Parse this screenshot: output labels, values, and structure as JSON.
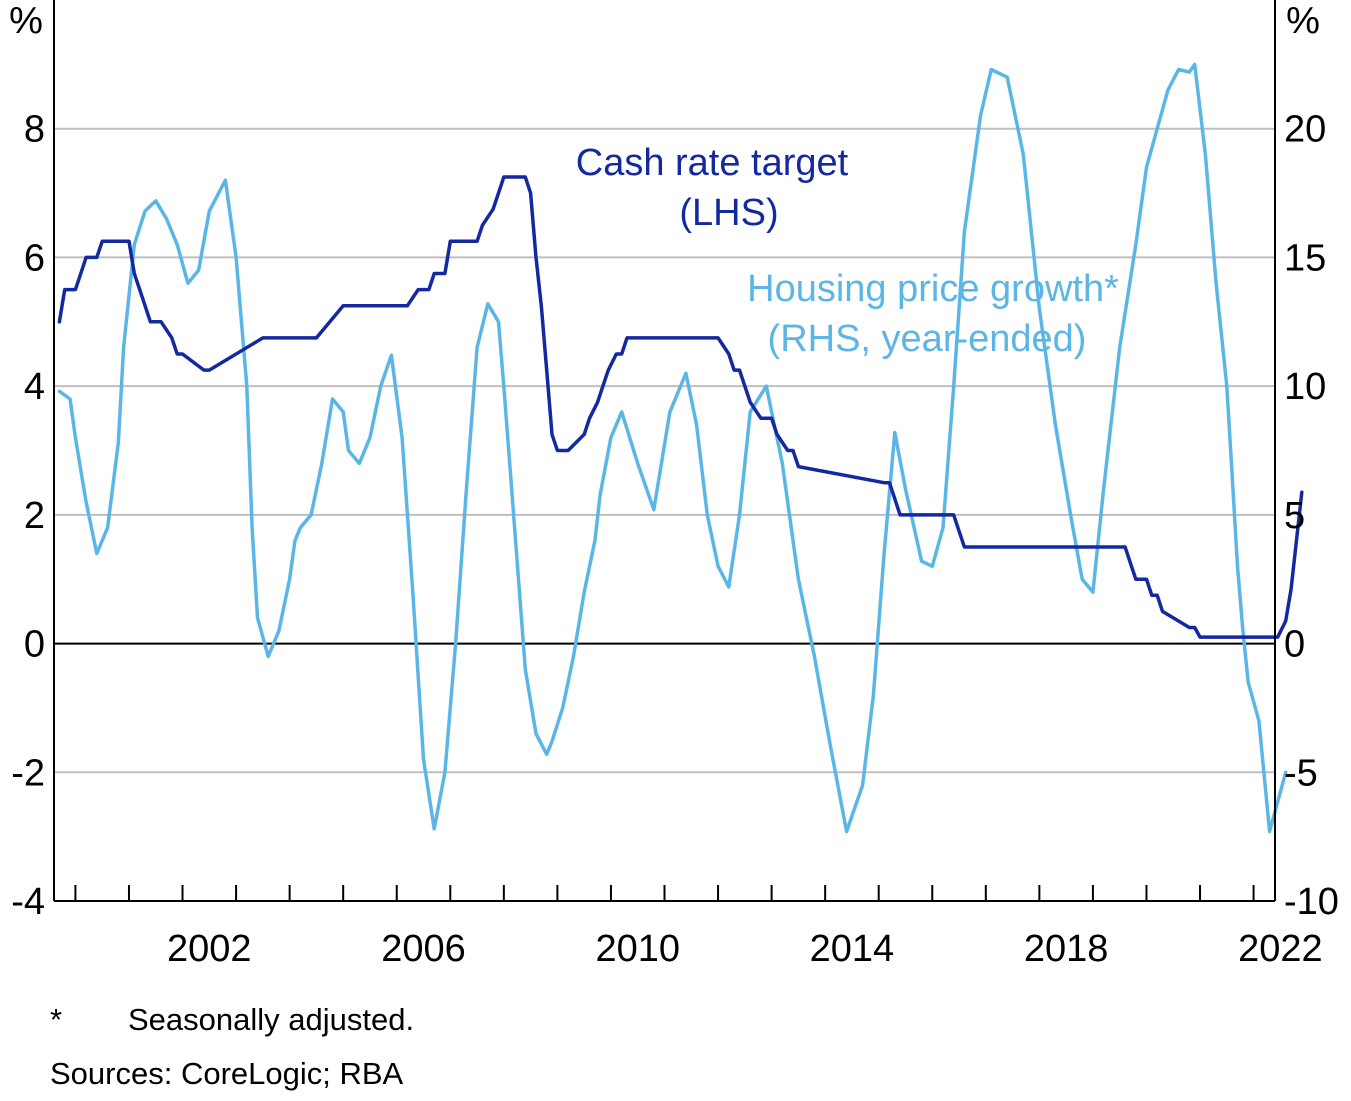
{
  "colors": {
    "cash": "#1428A0",
    "housing": "#5BB6E6",
    "grid": "#BFBFBF",
    "axis": "#000000"
  },
  "chart_data": {
    "type": "line",
    "title": "",
    "x_range": [
      1999.6,
      2022.4
    ],
    "x_ticks": [
      2002,
      2006,
      2010,
      2014,
      2018,
      2022
    ],
    "x_tick_labels": [
      "2002",
      "2006",
      "2010",
      "2014",
      "2018",
      "2022"
    ],
    "left_axis": {
      "unit_label": "%",
      "range": [
        -4,
        10
      ],
      "ticks": [
        8,
        6,
        4,
        2,
        0,
        -2,
        -4
      ],
      "tick_labels": [
        "8",
        "6",
        "4",
        "2",
        "0",
        "-2",
        "-4"
      ]
    },
    "right_axis": {
      "unit_label": "%",
      "range": [
        -10,
        25
      ],
      "ticks": [
        20,
        15,
        10,
        5,
        0,
        -5,
        -10
      ],
      "tick_labels": [
        "20",
        "15",
        "10",
        "5",
        "0",
        "-5",
        "-10"
      ]
    },
    "series": [
      {
        "name": "Cash rate target",
        "axis": "left",
        "label_line1": "Cash rate target",
        "label_line2": "(LHS)",
        "step": true,
        "x": [
          1999.7,
          1999.8,
          2000.0,
          2000.1,
          2000.2,
          2000.4,
          2000.5,
          2000.6,
          2000.8,
          2001.0,
          2001.1,
          2001.2,
          2001.4,
          2001.5,
          2001.6,
          2001.8,
          2001.9,
          2002.0,
          2002.4,
          2002.5,
          2003.5,
          2003.6,
          2004.5,
          2005.0,
          2005.3,
          2006.2,
          2006.4,
          2006.5,
          2006.6,
          2006.7,
          2006.9,
          2007.0,
          2007.5,
          2007.6,
          2007.8,
          2007.9,
          2008.0,
          2008.4,
          2008.5,
          2008.6,
          2008.7,
          2008.8,
          2008.9,
          2009.0,
          2009.1,
          2009.2,
          2009.5,
          2009.6,
          2009.75,
          2009.85,
          2009.95,
          2010.1,
          2010.2,
          2010.3,
          2010.9,
          2011.2,
          2011.5,
          2011.7,
          2011.8,
          2012.0,
          2012.2,
          2012.3,
          2012.4,
          2012.6,
          2012.8,
          2013.0,
          2013.1,
          2013.3,
          2013.4,
          2013.5,
          2015.1,
          2015.2,
          2015.3,
          2015.4,
          2016.3,
          2016.4,
          2016.5,
          2016.6,
          2019.4,
          2019.6,
          2019.7,
          2019.8,
          2020.0,
          2020.1,
          2020.2,
          2020.3,
          2020.8,
          2020.9,
          2021.0,
          2021.3,
          2021.6,
          2022.0,
          2022.3,
          2022.45,
          2022.6,
          2022.7,
          2022.9
        ],
        "y": [
          5.0,
          5.5,
          5.5,
          5.75,
          6.0,
          6.0,
          6.25,
          6.25,
          6.25,
          6.25,
          5.75,
          5.5,
          5.0,
          5.0,
          5.0,
          4.75,
          4.5,
          4.5,
          4.25,
          4.25,
          4.75,
          4.75,
          4.75,
          5.25,
          5.25,
          5.25,
          5.5,
          5.5,
          5.5,
          5.75,
          5.75,
          6.25,
          6.25,
          6.5,
          6.75,
          7.0,
          7.25,
          7.25,
          7.0,
          6.0,
          5.25,
          4.25,
          3.25,
          3.0,
          3.0,
          3.0,
          3.25,
          3.5,
          3.75,
          4.0,
          4.25,
          4.5,
          4.5,
          4.75,
          4.75,
          4.75,
          4.75,
          4.75,
          4.75,
          4.75,
          4.5,
          4.25,
          4.25,
          3.75,
          3.5,
          3.5,
          3.25,
          3.0,
          3.0,
          2.75,
          2.5,
          2.5,
          2.25,
          2.0,
          2.0,
          2.0,
          1.75,
          1.5,
          1.5,
          1.5,
          1.25,
          1.0,
          1.0,
          0.75,
          0.75,
          0.5,
          0.25,
          0.25,
          0.1,
          0.1,
          0.1,
          0.1,
          0.1,
          0.1,
          0.35,
          0.85,
          2.35
        ]
      },
      {
        "name": "Housing price growth*",
        "axis": "right",
        "label_line1": "Housing price growth*",
        "label_line2": "(RHS, year-ended)",
        "step": false,
        "x": [
          1999.7,
          1999.9,
          2000.0,
          2000.2,
          2000.4,
          2000.6,
          2000.8,
          2000.9,
          2001.1,
          2001.3,
          2001.5,
          2001.7,
          2001.9,
          2002.1,
          2002.3,
          2002.5,
          2002.8,
          2003.0,
          2003.2,
          2003.3,
          2003.4,
          2003.6,
          2003.8,
          2004.0,
          2004.1,
          2004.2,
          2004.4,
          2004.6,
          2004.8,
          2005.0,
          2005.1,
          2005.3,
          2005.5,
          2005.7,
          2005.9,
          2006.1,
          2006.3,
          2006.5,
          2006.7,
          2006.9,
          2007.1,
          2007.3,
          2007.5,
          2007.7,
          2007.9,
          2008.0,
          2008.2,
          2008.4,
          2008.6,
          2008.8,
          2008.9,
          2009.1,
          2009.3,
          2009.5,
          2009.7,
          2009.8,
          2010.0,
          2010.2,
          2010.5,
          2010.8,
          2011.1,
          2011.4,
          2011.6,
          2011.8,
          2012.0,
          2012.2,
          2012.4,
          2012.6,
          2012.9,
          2013.2,
          2013.5,
          2013.8,
          2014.1,
          2014.4,
          2014.7,
          2014.9,
          2015.1,
          2015.3,
          2015.5,
          2015.8,
          2016.0,
          2016.2,
          2016.4,
          2016.6,
          2016.9,
          2017.1,
          2017.4,
          2017.7,
          2018.0,
          2018.3,
          2018.6,
          2018.8,
          2019.0,
          2019.2,
          2019.5,
          2019.8,
          2020.0,
          2020.2,
          2020.4,
          2020.6,
          2020.8,
          2020.9,
          2021.1,
          2021.3,
          2021.5,
          2021.6,
          2021.7,
          2021.8,
          2021.9,
          2022.1,
          2022.3,
          2022.6
        ],
        "y": [
          9.8,
          9.5,
          8.0,
          5.5,
          3.5,
          4.5,
          7.8,
          11.5,
          15.5,
          16.8,
          17.2,
          16.5,
          15.5,
          14.0,
          14.5,
          16.8,
          18.0,
          15.0,
          10.0,
          4.5,
          1.0,
          -0.5,
          0.5,
          2.5,
          4.0,
          4.5,
          5.0,
          7.0,
          9.5,
          9.0,
          7.5,
          7.0,
          8.0,
          10.0,
          11.2,
          8.0,
          2.0,
          -4.5,
          -7.2,
          -5.0,
          0.0,
          6.0,
          11.5,
          13.2,
          12.5,
          10.0,
          4.5,
          -1.0,
          -3.5,
          -4.3,
          -3.8,
          -2.5,
          -0.5,
          2.0,
          4.0,
          5.8,
          8.0,
          9.0,
          7.0,
          5.2,
          9.0,
          10.5,
          8.5,
          5.0,
          3.0,
          2.2,
          5.0,
          9.0,
          10.0,
          7.0,
          2.5,
          -0.5,
          -4.0,
          -7.3,
          -5.5,
          -2.0,
          3.5,
          8.2,
          6.0,
          3.2,
          3.0,
          4.5,
          10.0,
          16.0,
          20.5,
          22.3,
          22.0,
          19.0,
          13.0,
          8.5,
          4.8,
          2.5,
          2.0,
          6.0,
          11.5,
          15.5,
          18.5,
          20.0,
          21.5,
          22.3,
          22.2,
          22.5,
          19.0,
          14.0,
          10.0,
          6.5,
          3.0,
          0.5,
          -1.5,
          -3.0,
          -7.3,
          -5.0
        ]
      }
    ]
  },
  "footnote": {
    "marker": "*",
    "text": "Seasonally adjusted."
  },
  "sources": "Sources: CoreLogic; RBA"
}
